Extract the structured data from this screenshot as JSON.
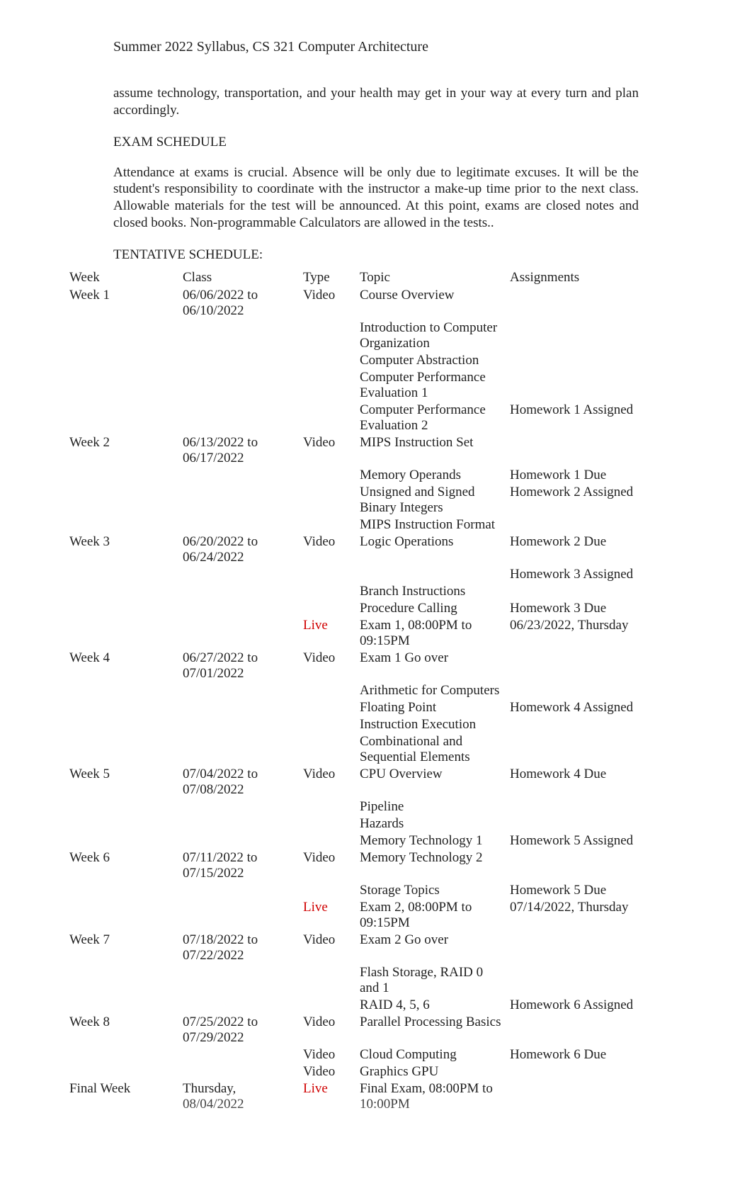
{
  "header": {
    "title": "Summer 2022 Syllabus, CS 321 Computer Architecture"
  },
  "intro_para": "assume technology, transportation, and your health may get in your way at every turn and plan accordingly.",
  "exam_heading": "EXAM SCHEDULE",
  "exam_para": "Attendance at exams is crucial.  Absence will be only due to legitimate excuses.  It will be the student's responsibility to coordinate with the instructor a make-up time prior to the next class.   Allowable materials for the test will be announced.  At this point, exams are closed notes and closed books. Non-programmable Calculators are allowed in the tests..",
  "tentative_heading": "TENTATIVE SCHEDULE:",
  "colors": {
    "text": "#222222",
    "live_type": "#d00000",
    "background": "#ffffff"
  },
  "schedule": {
    "columns": [
      "Week",
      "Class",
      "Type",
      "Topic",
      "Assignments"
    ],
    "rows": [
      {
        "week": "Week 1",
        "class": "06/06/2022 to 06/10/2022",
        "type": "Video",
        "type_color": "normal",
        "topic": "Course Overview",
        "assign": ""
      },
      {
        "week": "",
        "class": "",
        "type": "",
        "type_color": "normal",
        "topic": "Introduction to Computer Organization",
        "assign": ""
      },
      {
        "week": "",
        "class": "",
        "type": "",
        "type_color": "normal",
        "topic": "Computer Abstraction",
        "assign": ""
      },
      {
        "week": "",
        "class": "",
        "type": "",
        "type_color": "normal",
        "topic": "Computer Performance Evaluation 1",
        "assign": ""
      },
      {
        "week": "",
        "class": "",
        "type": "",
        "type_color": "normal",
        "topic": "Computer Performance Evaluation 2",
        "assign": "Homework 1 Assigned"
      },
      {
        "week": "Week 2",
        "class": "06/13/2022 to 06/17/2022",
        "type": "Video",
        "type_color": "normal",
        "topic": "MIPS Instruction Set",
        "assign": ""
      },
      {
        "week": "",
        "class": "",
        "type": "",
        "type_color": "normal",
        "topic": "Memory Operands",
        "assign": "Homework 1 Due"
      },
      {
        "week": "",
        "class": "",
        "type": "",
        "type_color": "normal",
        "topic": "Unsigned and Signed Binary Integers",
        "assign": "Homework 2 Assigned"
      },
      {
        "week": "",
        "class": "",
        "type": "",
        "type_color": "normal",
        "topic": "MIPS Instruction Format",
        "assign": ""
      },
      {
        "week": "Week 3",
        "class": "06/20/2022 to 06/24/2022",
        "type": "Video",
        "type_color": "normal",
        "topic": "Logic Operations",
        "assign": "Homework 2 Due"
      },
      {
        "week": "",
        "class": "",
        "type": "",
        "type_color": "normal",
        "topic": "",
        "assign": "Homework 3 Assigned"
      },
      {
        "week": "",
        "class": "",
        "type": "",
        "type_color": "normal",
        "topic": "Branch Instructions",
        "assign": ""
      },
      {
        "week": "",
        "class": "",
        "type": "",
        "type_color": "normal",
        "topic": "Procedure Calling",
        "assign": "Homework 3 Due"
      },
      {
        "week": "",
        "class": "",
        "type": "Live",
        "type_color": "live",
        "topic": "Exam 1, 08:00PM to 09:15PM",
        "assign": "06/23/2022, Thursday"
      },
      {
        "week": "Week 4",
        "class": "06/27/2022 to 07/01/2022",
        "type": "Video",
        "type_color": "normal",
        "topic": "Exam 1 Go over",
        "assign": ""
      },
      {
        "week": "",
        "class": "",
        "type": "",
        "type_color": "normal",
        "topic": "Arithmetic for Computers",
        "assign": ""
      },
      {
        "week": "",
        "class": "",
        "type": "",
        "type_color": "normal",
        "topic": "Floating Point",
        "assign": "Homework 4 Assigned"
      },
      {
        "week": "",
        "class": "",
        "type": "",
        "type_color": "normal",
        "topic": "Instruction Execution",
        "assign": ""
      },
      {
        "week": "",
        "class": "",
        "type": "",
        "type_color": "normal",
        "topic": "Combinational and Sequential Elements",
        "assign": ""
      },
      {
        "week": "Week 5",
        "class": "07/04/2022 to 07/08/2022",
        "type": "Video",
        "type_color": "normal",
        "topic": "CPU Overview",
        "assign": "Homework 4 Due"
      },
      {
        "week": "",
        "class": "",
        "type": "",
        "type_color": "normal",
        "topic": "Pipeline",
        "assign": ""
      },
      {
        "week": "",
        "class": "",
        "type": "",
        "type_color": "normal",
        "topic": "Hazards",
        "assign": ""
      },
      {
        "week": "",
        "class": "",
        "type": "",
        "type_color": "normal",
        "topic": "Memory Technology 1",
        "assign": "Homework 5 Assigned"
      },
      {
        "week": "Week 6",
        "class": "07/11/2022 to 07/15/2022",
        "type": "Video",
        "type_color": "normal",
        "topic": "Memory Technology 2",
        "assign": ""
      },
      {
        "week": "",
        "class": "",
        "type": "",
        "type_color": "normal",
        "topic": "Storage Topics",
        "assign": "Homework 5 Due"
      },
      {
        "week": "",
        "class": "",
        "type": "Live",
        "type_color": "live",
        "topic": "Exam 2, 08:00PM to 09:15PM",
        "assign": "07/14/2022, Thursday"
      },
      {
        "week": "Week 7",
        "class": "07/18/2022 to 07/22/2022",
        "type": "Video",
        "type_color": "normal",
        "topic": "Exam 2 Go over",
        "assign": ""
      },
      {
        "week": "",
        "class": "",
        "type": "",
        "type_color": "normal",
        "topic": "Flash Storage, RAID 0 and 1",
        "assign": ""
      },
      {
        "week": "",
        "class": "",
        "type": "",
        "type_color": "normal",
        "topic": "RAID 4, 5, 6",
        "assign": "Homework 6 Assigned"
      },
      {
        "week": "Week 8",
        "class": "07/25/2022 to 07/29/2022",
        "type": "Video",
        "type_color": "normal",
        "topic": "Parallel Processing Basics",
        "assign": ""
      },
      {
        "week": "",
        "class": "",
        "type": "Video",
        "type_color": "normal",
        "topic": "Cloud Computing",
        "assign": "Homework 6 Due"
      },
      {
        "week": "",
        "class": "",
        "type": "Video",
        "type_color": "normal",
        "topic": "Graphics GPU",
        "assign": ""
      },
      {
        "week": "Final Week",
        "class": "Thursday, 08/04/2022",
        "type": "Live",
        "type_color": "live",
        "topic": "Final Exam, 08:00PM to 10:00PM",
        "assign": ""
      }
    ]
  }
}
